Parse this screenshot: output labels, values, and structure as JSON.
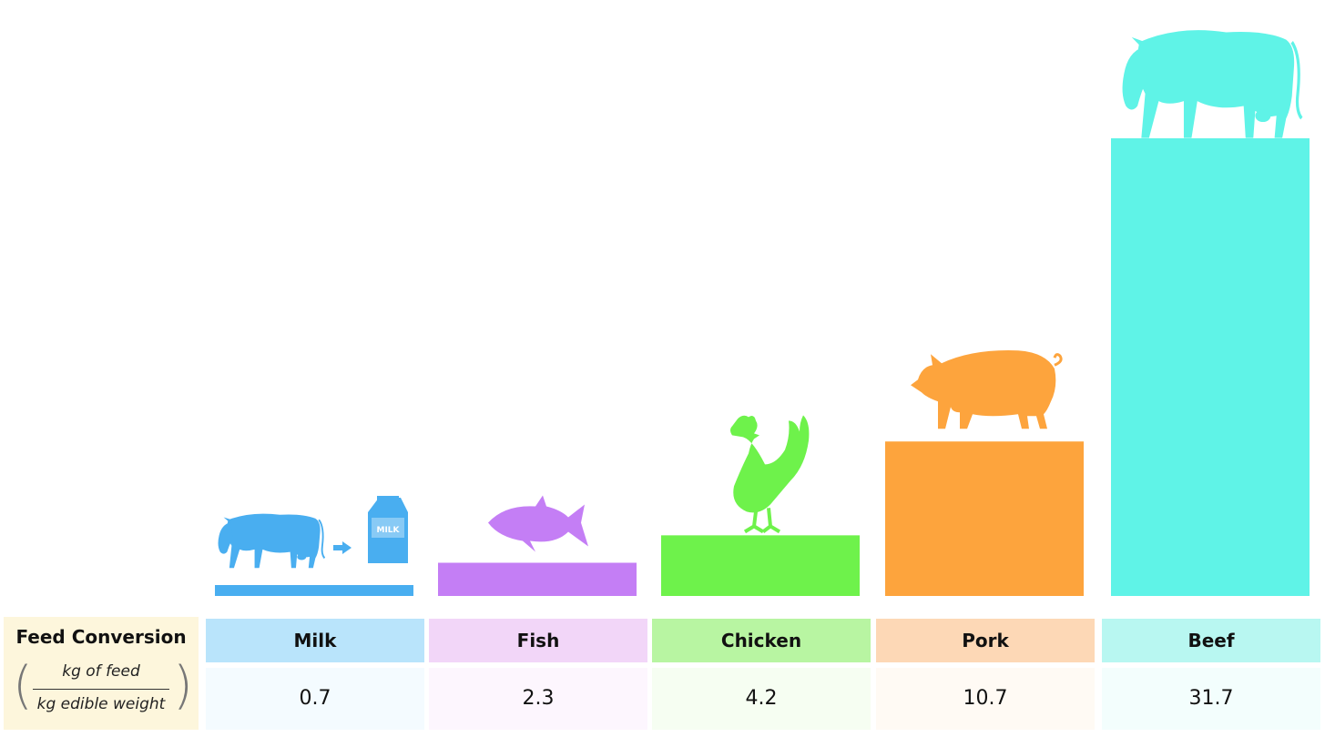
{
  "chart_data": {
    "type": "bar",
    "categories": [
      "Milk",
      "Fish",
      "Chicken",
      "Pork",
      "Beef"
    ],
    "values": [
      0.7,
      2.3,
      4.2,
      10.7,
      31.7
    ],
    "values_text": [
      "0.7",
      "2.3",
      "4.2",
      "10.7",
      "31.7"
    ],
    "ylim": [
      0,
      32
    ],
    "grid": false,
    "legend": "none",
    "row_label": "Feed Conversion",
    "unit_numerator": "kg of feed",
    "unit_denominator": "kg edible weight",
    "icons": [
      "cow-to-milk-carton-icon",
      "fish-icon",
      "chicken-icon",
      "pig-icon",
      "cow-icon"
    ],
    "carton_text": "MILK",
    "colors": {
      "bars": [
        "#49aef0",
        "#c47ef5",
        "#6ef24b",
        "#fda43d",
        "#5ff3e7"
      ],
      "header_bg": [
        "#b9e4fb",
        "#f2d6f8",
        "#b8f5a2",
        "#fdd8b6",
        "#b8f7f1"
      ],
      "value_bg": [
        "#f4fbff",
        "#fdf6fe",
        "#f6fef2",
        "#fffaf4",
        "#f3fefd"
      ],
      "label_bg": "#fdf6dc"
    }
  }
}
